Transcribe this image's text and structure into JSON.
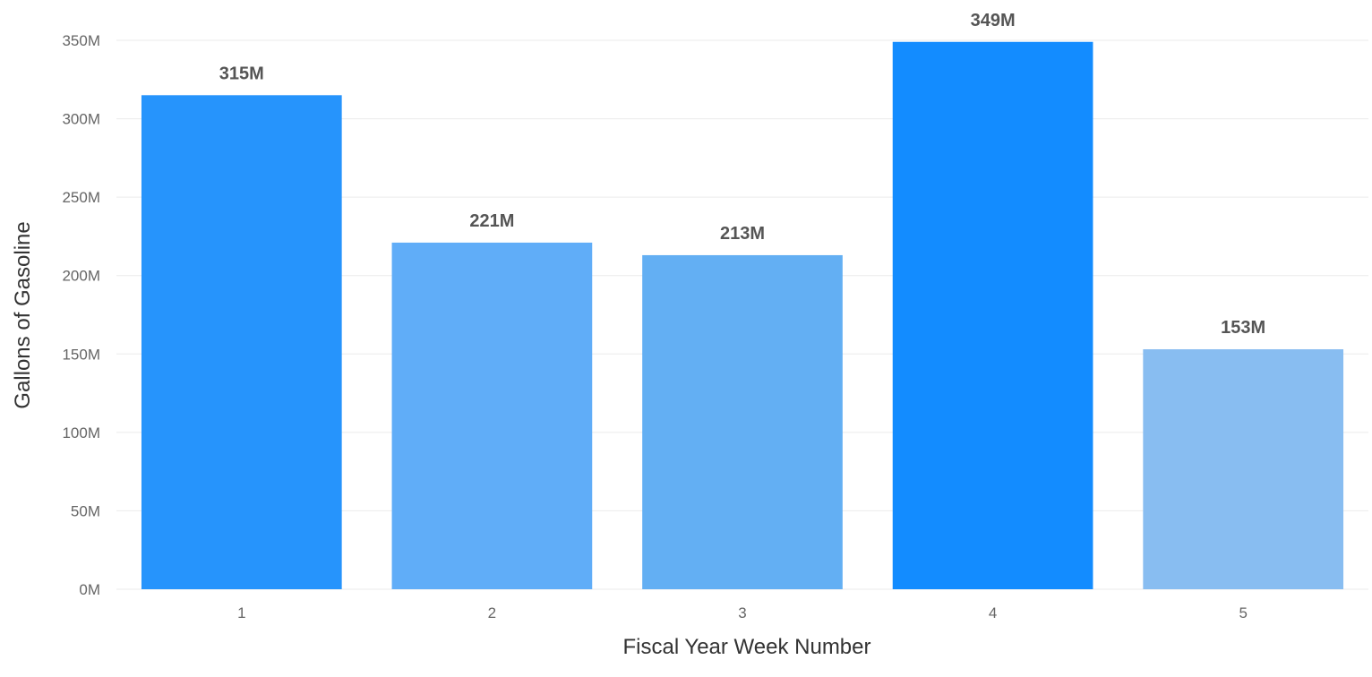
{
  "chart_data": {
    "type": "bar",
    "categories": [
      "1",
      "2",
      "3",
      "4",
      "5"
    ],
    "values": [
      315,
      221,
      213,
      349,
      153
    ],
    "data_labels": [
      "315M",
      "221M",
      "213M",
      "349M",
      "153M"
    ],
    "bar_colors": [
      "#2694fc",
      "#60adf8",
      "#63aff3",
      "#138cff",
      "#88bdf1"
    ],
    "xlabel": "Fiscal Year Week Number",
    "ylabel": "Gallons of Gasoline",
    "ylim": [
      0,
      350
    ],
    "yticks": [
      0,
      50,
      100,
      150,
      200,
      250,
      300,
      350
    ],
    "ytick_labels": [
      "0M",
      "50M",
      "100M",
      "150M",
      "200M",
      "250M",
      "300M",
      "350M"
    ],
    "grid": true,
    "legend": "none"
  }
}
